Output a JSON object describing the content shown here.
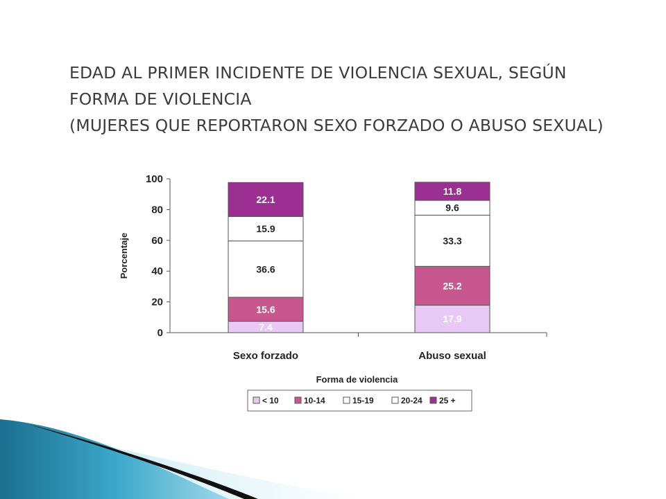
{
  "title_lines": [
    "EDAD AL PRIMER INCIDENTE DE VIOLENCIA SEXUAL, SEGÚN",
    "FORMA DE VIOLENCIA",
    "(MUJERES QUE REPORTARON SEXO FORZADO O ABUSO SEXUAL)"
  ],
  "chart_data": {
    "type": "bar",
    "stacked": true,
    "title": "",
    "xlabel": "Forma de violencia",
    "ylabel": "Porcentaje",
    "ylim": [
      0,
      100
    ],
    "yticks": [
      0,
      20,
      40,
      60,
      80,
      100
    ],
    "categories": [
      "Sexo forzado",
      "Abuso sexual"
    ],
    "series": [
      {
        "name": "< 10",
        "color": "#e8c8f4",
        "label_color": "#ffffff",
        "values": [
          7.4,
          17.9
        ]
      },
      {
        "name": "10-14",
        "color": "#c9578f",
        "label_color": "#ffffff",
        "values": [
          15.6,
          25.2
        ]
      },
      {
        "name": "15-19",
        "color": "#ffffff",
        "label_color": "#222222",
        "values": [
          36.6,
          33.3
        ]
      },
      {
        "name": "20-24",
        "color": "#ffffff",
        "label_color": "#222222",
        "values": [
          15.9,
          9.6
        ]
      },
      {
        "name": "25 +",
        "color": "#9b2f92",
        "label_color": "#ffffff",
        "values": [
          22.1,
          11.8
        ]
      }
    ],
    "data_labels": [
      [
        "7.4",
        "15.6",
        "36.6",
        "15.9",
        "22.1"
      ],
      [
        "17.9",
        "25.2",
        "33.3",
        "9.6",
        "11.8"
      ]
    ],
    "legend_position": "bottom",
    "grid": false
  }
}
